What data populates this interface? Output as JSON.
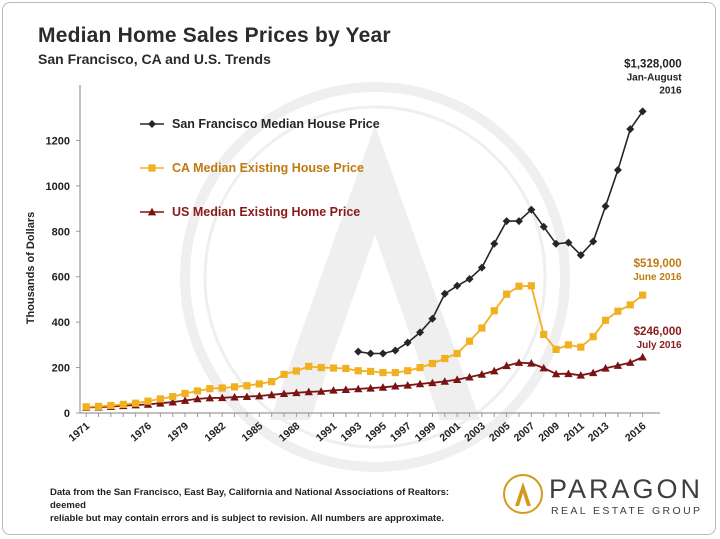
{
  "header": {
    "title": "Median Home Sales Prices by Year",
    "subtitle": "San Francisco, CA and U.S. Trends"
  },
  "footer": {
    "line1": "Data from the San Francisco, East Bay, California and National Associations of Realtors:  deemed",
    "line2": "reliable but may contain errors and is subject to revision.  All numbers are approximate."
  },
  "logo": {
    "name": "PARAGON",
    "tagline": "REAL ESTATE GROUP"
  },
  "colors": {
    "sf": "#262626",
    "ca": "#f0b020",
    "us": "#7a1414",
    "ca_label": "#c07a10",
    "us_label": "#8a1a1a"
  },
  "chart_data": {
    "type": "line",
    "ylabel": "Thousands of Dollars",
    "xlabel": "",
    "ylim": [
      0,
      1400
    ],
    "yticks": [
      0,
      200,
      400,
      600,
      800,
      1000,
      1200
    ],
    "xlim": [
      1970.5,
      2017
    ],
    "xticks": [
      "1971",
      "1976",
      "1979",
      "1982",
      "1985",
      "1988",
      "1991",
      "1993",
      "1995",
      "1997",
      "1999",
      "2001",
      "2003",
      "2005",
      "2007",
      "2009",
      "2011",
      "2013",
      "2016"
    ],
    "series": [
      {
        "name": "San Francisco Median House Price",
        "key": "sf",
        "marker": "diamond",
        "x": [
          1993,
          1994,
          1995,
          1996,
          1997,
          1998,
          1999,
          2000,
          2001,
          2002,
          2003,
          2004,
          2005,
          2006,
          2007,
          2008,
          2009,
          2010,
          2011,
          2012,
          2013,
          2014,
          2015,
          2016
        ],
        "values": [
          270,
          262,
          262,
          275,
          310,
          355,
          415,
          525,
          560,
          590,
          640,
          745,
          845,
          845,
          895,
          820,
          745,
          750,
          695,
          755,
          910,
          1070,
          1250,
          1328
        ]
      },
      {
        "name": "CA Median Existing House Price",
        "key": "ca",
        "marker": "square",
        "x": [
          1971,
          1972,
          1973,
          1974,
          1975,
          1976,
          1977,
          1978,
          1979,
          1980,
          1981,
          1982,
          1983,
          1984,
          1985,
          1986,
          1987,
          1988,
          1989,
          1990,
          1991,
          1992,
          1993,
          1994,
          1995,
          1996,
          1997,
          1998,
          1999,
          2000,
          2001,
          2002,
          2003,
          2004,
          2005,
          2006,
          2007,
          2008,
          2009,
          2010,
          2011,
          2012,
          2013,
          2014,
          2015,
          2016
        ],
        "values": [
          27,
          29,
          33,
          38,
          43,
          52,
          62,
          72,
          86,
          97,
          107,
          110,
          115,
          120,
          128,
          138,
          170,
          185,
          205,
          200,
          198,
          196,
          186,
          183,
          178,
          178,
          186,
          200,
          218,
          240,
          262,
          316,
          374,
          450,
          523,
          558,
          560,
          346,
          280,
          300,
          290,
          336,
          408,
          448,
          476,
          519
        ]
      },
      {
        "name": "US Median Existing Home Price",
        "key": "us",
        "marker": "triangle",
        "x": [
          1971,
          1972,
          1973,
          1974,
          1975,
          1976,
          1977,
          1978,
          1979,
          1980,
          1981,
          1982,
          1983,
          1984,
          1985,
          1986,
          1987,
          1988,
          1989,
          1990,
          1991,
          1992,
          1993,
          1994,
          1995,
          1996,
          1997,
          1998,
          1999,
          2000,
          2001,
          2002,
          2003,
          2004,
          2005,
          2006,
          2007,
          2008,
          2009,
          2010,
          2011,
          2012,
          2013,
          2014,
          2015,
          2016
        ],
        "values": [
          24,
          26,
          28,
          32,
          35,
          38,
          43,
          48,
          55,
          62,
          66,
          67,
          70,
          72,
          75,
          80,
          85,
          89,
          93,
          95,
          100,
          103,
          106,
          109,
          113,
          118,
          122,
          128,
          133,
          139,
          147,
          158,
          170,
          185,
          208,
          222,
          219,
          198,
          172,
          173,
          166,
          177,
          197,
          209,
          222,
          246
        ]
      }
    ],
    "annotations": [
      {
        "series": "sf",
        "value": "$1,328,000",
        "note1": "Jan-August",
        "note2": "2016"
      },
      {
        "series": "ca",
        "value": "$519,000",
        "note1": "June 2016"
      },
      {
        "series": "us",
        "value": "$246,000",
        "note1": "July 2016"
      }
    ]
  }
}
